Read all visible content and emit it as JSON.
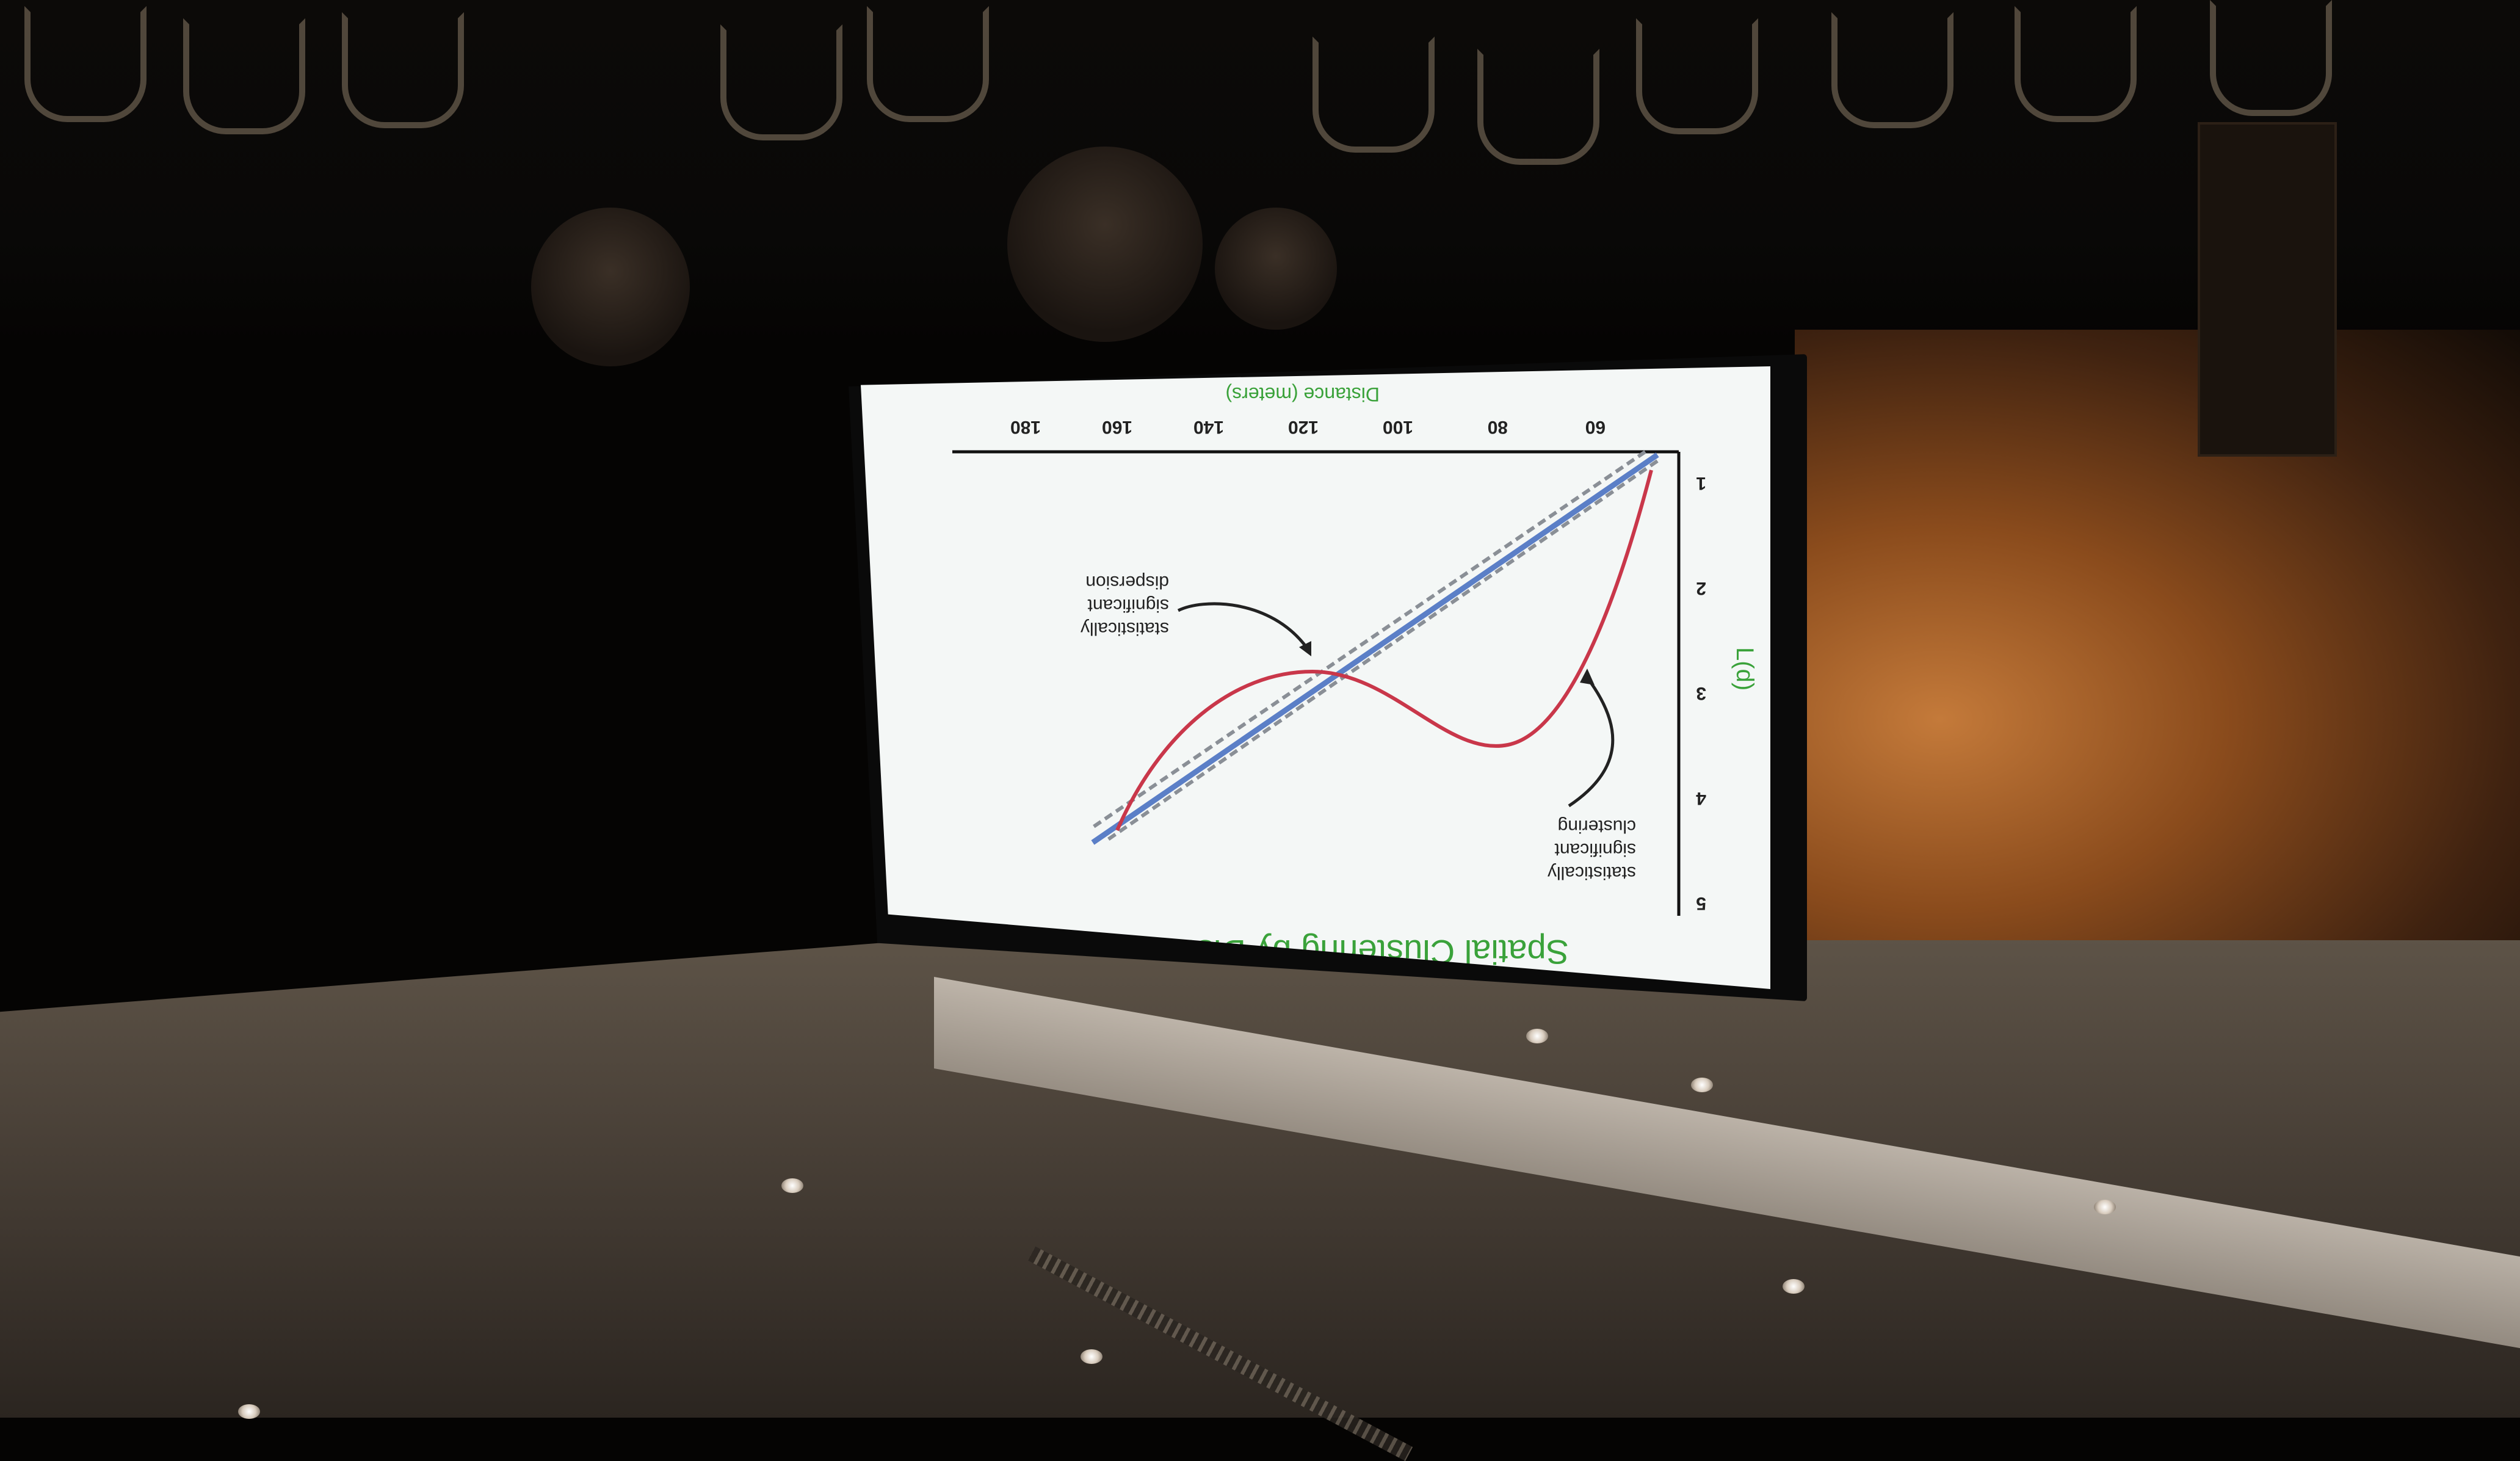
{
  "slide": {
    "title": "Spatial Clustering by Distance",
    "ylabel": "L(d)",
    "xlabel": "Distance (meters)",
    "y_ticks": [
      "1",
      "2",
      "3",
      "4",
      "5"
    ],
    "x_ticks": [
      "60",
      "80",
      "100",
      "120",
      "140",
      "160",
      "180"
    ],
    "annotation_clustering": [
      "statistically",
      "significant",
      "clustering"
    ],
    "annotation_dispersion": [
      "statistically",
      "significant",
      "dispersion"
    ]
  },
  "colors": {
    "title_green": "#3aa23a",
    "expected_line": "#5b7fc7",
    "observed_curve": "#c9374a",
    "confidence_dashes": "#8a8f96",
    "warm_light": "#c47a3a"
  }
}
